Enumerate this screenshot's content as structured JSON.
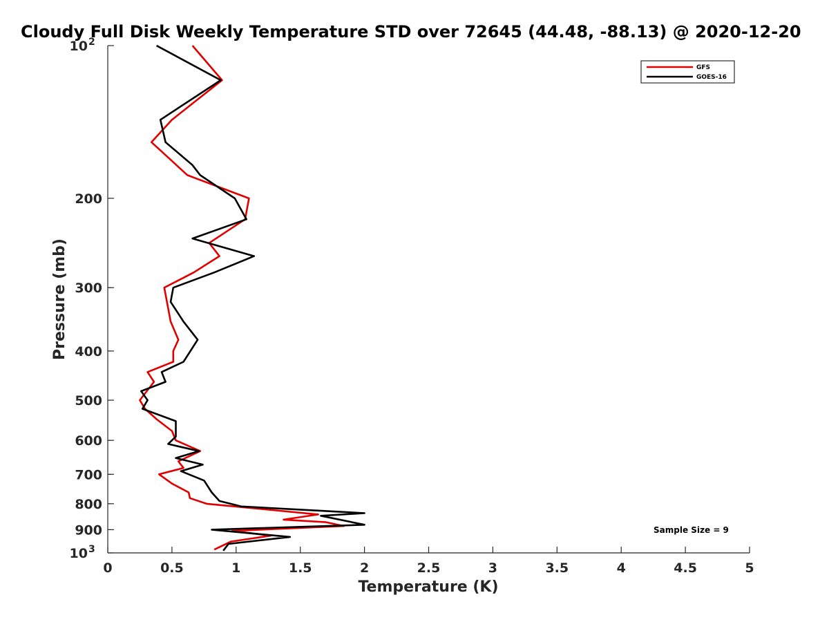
{
  "chart_data": {
    "type": "line",
    "title": "Cloudy Full Disk Weekly Temperature STD over 72645 (44.48, -88.13) @ 2020-12-20",
    "xlabel": "Temperature (K)",
    "ylabel": "Pressure (mb)",
    "xlim": [
      0,
      5
    ],
    "ylim": [
      100,
      1000
    ],
    "y_scale": "log",
    "y_reversed": true,
    "grid": false,
    "legend_position": "top-right",
    "x_ticks": [
      {
        "value": 0,
        "label": "0"
      },
      {
        "value": 0.5,
        "label": "0.5"
      },
      {
        "value": 1,
        "label": "1"
      },
      {
        "value": 1.5,
        "label": "1.5"
      },
      {
        "value": 2,
        "label": "2"
      },
      {
        "value": 2.5,
        "label": "2.5"
      },
      {
        "value": 3,
        "label": "3"
      },
      {
        "value": 3.5,
        "label": "3.5"
      },
      {
        "value": 4,
        "label": "4"
      },
      {
        "value": 4.5,
        "label": "4.5"
      },
      {
        "value": 5,
        "label": "5"
      }
    ],
    "y_ticks": [
      {
        "value": 100,
        "base": "10",
        "exp": "2"
      },
      {
        "value": 200,
        "label": "200"
      },
      {
        "value": 300,
        "label": "300"
      },
      {
        "value": 400,
        "label": "400"
      },
      {
        "value": 500,
        "label": "500"
      },
      {
        "value": 600,
        "label": "600"
      },
      {
        "value": 700,
        "label": "700"
      },
      {
        "value": 800,
        "label": "800"
      },
      {
        "value": 900,
        "label": "900"
      },
      {
        "value": 1000,
        "base": "10",
        "exp": "3"
      }
    ],
    "series": [
      {
        "name": "GFS",
        "color": "#e00000",
        "points": [
          [
            0.66,
            100
          ],
          [
            0.89,
            117
          ],
          [
            0.5,
            140
          ],
          [
            0.34,
            155
          ],
          [
            0.62,
            180
          ],
          [
            1.1,
            200
          ],
          [
            1.07,
            220
          ],
          [
            0.79,
            245
          ],
          [
            0.87,
            260
          ],
          [
            0.67,
            280
          ],
          [
            0.44,
            300
          ],
          [
            0.49,
            350
          ],
          [
            0.55,
            380
          ],
          [
            0.51,
            400
          ],
          [
            0.51,
            420
          ],
          [
            0.31,
            440
          ],
          [
            0.36,
            460
          ],
          [
            0.25,
            500
          ],
          [
            0.29,
            520
          ],
          [
            0.38,
            545
          ],
          [
            0.5,
            575
          ],
          [
            0.53,
            600
          ],
          [
            0.72,
            630
          ],
          [
            0.55,
            660
          ],
          [
            0.59,
            680
          ],
          [
            0.4,
            700
          ],
          [
            0.5,
            730
          ],
          [
            0.63,
            760
          ],
          [
            0.64,
            780
          ],
          [
            0.77,
            800
          ],
          [
            1.64,
            840
          ],
          [
            1.37,
            860
          ],
          [
            1.7,
            870
          ],
          [
            1.84,
            885
          ],
          [
            0.97,
            905
          ],
          [
            1.27,
            925
          ],
          [
            0.96,
            950
          ],
          [
            0.83,
            985
          ]
        ]
      },
      {
        "name": "GOES-16",
        "color": "#000000",
        "points": [
          [
            0.38,
            100
          ],
          [
            0.88,
            117
          ],
          [
            0.41,
            140
          ],
          [
            0.45,
            155
          ],
          [
            0.66,
            172
          ],
          [
            0.72,
            180
          ],
          [
            0.99,
            200
          ],
          [
            1.08,
            220
          ],
          [
            0.66,
            240
          ],
          [
            1.14,
            260
          ],
          [
            0.83,
            280
          ],
          [
            0.51,
            300
          ],
          [
            0.49,
            320
          ],
          [
            0.59,
            350
          ],
          [
            0.7,
            380
          ],
          [
            0.59,
            420
          ],
          [
            0.42,
            440
          ],
          [
            0.45,
            460
          ],
          [
            0.26,
            480
          ],
          [
            0.31,
            500
          ],
          [
            0.27,
            520
          ],
          [
            0.53,
            550
          ],
          [
            0.53,
            590
          ],
          [
            0.47,
            610
          ],
          [
            0.71,
            630
          ],
          [
            0.53,
            650
          ],
          [
            0.74,
            670
          ],
          [
            0.57,
            690
          ],
          [
            0.75,
            720
          ],
          [
            0.81,
            760
          ],
          [
            0.87,
            790
          ],
          [
            1.04,
            810
          ],
          [
            2.0,
            835
          ],
          [
            1.66,
            845
          ],
          [
            2.0,
            880
          ],
          [
            0.81,
            900
          ],
          [
            1.42,
            930
          ],
          [
            0.94,
            960
          ],
          [
            0.9,
            990
          ]
        ]
      }
    ],
    "annotations": [
      {
        "text": "Sample Size = 9"
      }
    ]
  }
}
